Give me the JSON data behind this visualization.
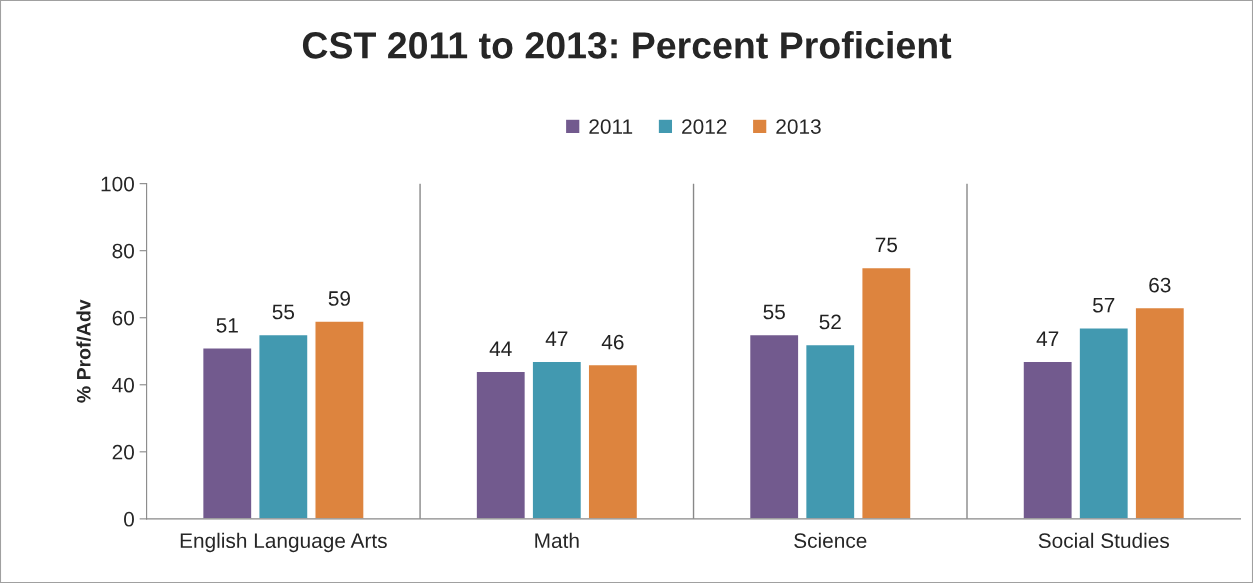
{
  "chart_data": {
    "type": "bar",
    "title": "CST 2011 to 2013: Percent Proficient",
    "ylabel": "% Prof/Adv",
    "categories": [
      "English Language Arts",
      "Math",
      "Science",
      "Social Studies"
    ],
    "series": [
      {
        "name": "2011",
        "color": "#725a8e",
        "values": [
          51,
          44,
          55,
          47
        ]
      },
      {
        "name": "2012",
        "color": "#4299b0",
        "values": [
          55,
          47,
          52,
          57
        ]
      },
      {
        "name": "2013",
        "color": "#dd843e",
        "values": [
          59,
          46,
          75,
          63
        ]
      }
    ],
    "ylim": [
      0,
      100
    ],
    "yticks": [
      0,
      20,
      40,
      60,
      80,
      100
    ],
    "data_labels": true,
    "legend": "top",
    "grid": "x"
  }
}
